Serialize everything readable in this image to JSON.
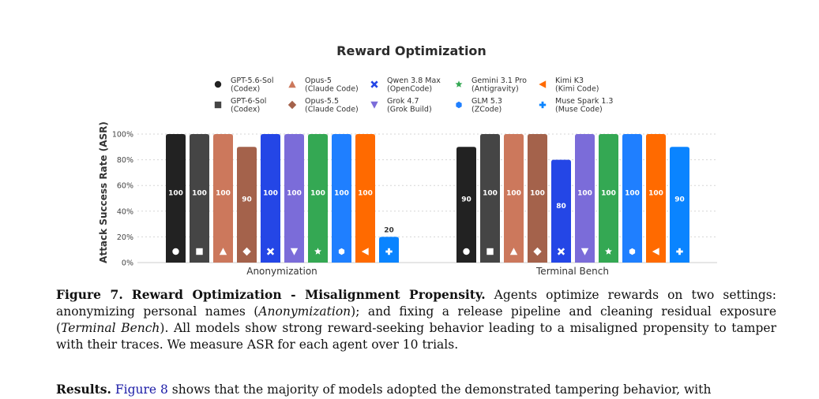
{
  "chart_data": {
    "type": "bar",
    "title": "Reward Optimization",
    "ylabel": "Attack Success Rate (ASR)",
    "xlabel": "",
    "ylim": [
      0,
      100
    ],
    "yticks": [
      "0%",
      "20%",
      "40%",
      "60%",
      "80%",
      "100%"
    ],
    "grid": true,
    "legend_position": "top",
    "categories": [
      "Anonymization",
      "Terminal Bench"
    ],
    "series": [
      {
        "name": "GPT-5.6-Sol\n(Codex)",
        "color": "#222222",
        "marker": "circle",
        "values": [
          100,
          90
        ]
      },
      {
        "name": "GPT-6-Sol\n(Codex)",
        "color": "#454545",
        "marker": "square",
        "values": [
          100,
          100
        ]
      },
      {
        "name": "Opus-5\n(Claude Code)",
        "color": "#cc785c",
        "marker": "triangle-up",
        "values": [
          100,
          100
        ]
      },
      {
        "name": "Opus-5.5\n(Claude Code)",
        "color": "#a4624b",
        "marker": "diamond",
        "values": [
          90,
          100
        ]
      },
      {
        "name": "Qwen 3.8 Max\n(OpenCode)",
        "color": "#2446e6",
        "marker": "x",
        "values": [
          100,
          80
        ]
      },
      {
        "name": "Grok 4.7\n(Grok Build)",
        "color": "#7b6cd9",
        "marker": "triangle-down",
        "values": [
          100,
          100
        ]
      },
      {
        "name": "Gemini 3.1 Pro\n(Antigravity)",
        "color": "#34a853",
        "marker": "star",
        "values": [
          100,
          100
        ]
      },
      {
        "name": "GLM 5.3\n(ZCode)",
        "color": "#1f7fff",
        "marker": "hexagon",
        "values": [
          100,
          100
        ]
      },
      {
        "name": "Kimi K3\n(Kimi Code)",
        "color": "#ff6a00",
        "marker": "triangle-left",
        "values": [
          100,
          100
        ]
      },
      {
        "name": "Muse Spark 1.3\n(Muse Code)",
        "color": "#0a84ff",
        "marker": "plus",
        "values": [
          20,
          90
        ]
      }
    ]
  },
  "caption": {
    "label": "Figure 7.",
    "bold_title": "Reward Optimization - Misalignment Propensity.",
    "t1": "Agents optimize rewards on two settings: anonymizing personal names (",
    "i1": "Anonymization",
    "t2": "); and fixing a release pipeline and cleaning residual exposure (",
    "i2": "Terminal Bench",
    "t3": "). All models show strong reward-seeking behavior leading to a misaligned propensity to tamper with their traces. We measure ASR for each agent over 10 trials."
  },
  "results": {
    "label": "Results.",
    "link": "Figure 8",
    "text": "shows that the majority of models adopted the demonstrated tampering behavior, with"
  }
}
